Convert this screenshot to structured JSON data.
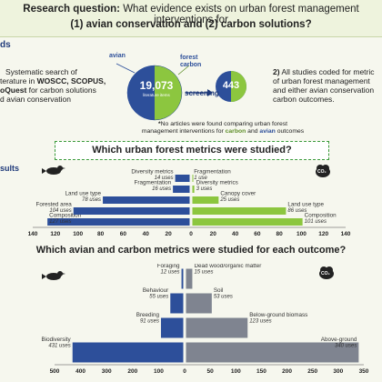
{
  "header": {
    "line1_label": "Research question:",
    "line1_text": "What evidence exists on urban forest management interventions for",
    "line2": "(1) avian conservation and (2) carbon solutions?"
  },
  "methods": {
    "heading": "ds",
    "text_lines": [
      "Systematic search of",
      "terature in ",
      "WOSCC, SCOPUS,",
      "oQuest",
      " for carbon solutions",
      "d avian conservation"
    ],
    "line1": "Systematic search of",
    "line2_pre": "terature in ",
    "line2_bold": "WOSCC, SCOPUS,",
    "line3_bold": "oQuest",
    "line3_post": " for carbon solutions",
    "line4": "d avian conservation"
  },
  "venn": {
    "avian_label": "avian",
    "forest_carbon_label": "forest carbon",
    "big_count": "19,073",
    "big_caption": "literature items",
    "screening_label": "screening",
    "small_count": "443"
  },
  "right_note": {
    "line1_num": "2)",
    "line1": "All studies coded for metric",
    "line2": "of urban forest management",
    "line3": "and either avian conservation",
    "line4": "carbon outcomes."
  },
  "footnote": {
    "line1": "No articles were found comparing urban forest",
    "line2_pre": "management interventions for ",
    "line2_carbon": "carbon",
    "line2_mid": " and ",
    "line2_avian": "avian",
    "line2_post": " outcomes"
  },
  "section1_title": "Which urban forest metrics were studied?",
  "section2_title": "Which avian and carbon metrics were studied for each outcome?",
  "results_label": "sults",
  "co2_label": "CO₂",
  "colors": {
    "avian": "#2d4f9a",
    "carbon": "#8cc63f",
    "carbon_dark": "#5f8f2a",
    "outcome_gray": "#7f8490",
    "navy": "#1f3a7a"
  },
  "chart_data": [
    {
      "type": "bar",
      "title": "Which urban forest metrics were studied?",
      "orientation": "horizontal-diverging",
      "xlim_left": [
        140,
        0
      ],
      "xlim_right": [
        0,
        140
      ],
      "left_ticks": [
        "140",
        "120",
        "100",
        "80",
        "60",
        "40",
        "20",
        "0"
      ],
      "right_ticks": [
        "20",
        "40",
        "60",
        "80",
        "100",
        "120",
        "140"
      ],
      "categories": [
        "Composition",
        "Forested area",
        "Land use type",
        "Fragmentation",
        "Diversity metrics"
      ],
      "series": [
        {
          "name": "avian",
          "values": [
            127,
            104,
            78,
            16,
            14
          ],
          "labels": [
            "Composition",
            "Forested area",
            "Land use type",
            "Fragmentation",
            "Diversity metrics"
          ],
          "uses": [
            "127 uses",
            "104 uses",
            "78 uses",
            "16 uses",
            "14 uses"
          ]
        },
        {
          "name": "carbon",
          "values": [
            101,
            86,
            25,
            3,
            1
          ],
          "labels": [
            "Composition",
            "Land use type",
            "Canopy cover",
            "Diversity metrics",
            "Fragmentation"
          ],
          "uses": [
            "101 uses",
            "86 uses",
            "25 uses",
            "3 uses",
            "1 use"
          ]
        }
      ]
    },
    {
      "type": "bar",
      "title": "Which avian and carbon metrics were studied for each outcome?",
      "orientation": "horizontal-diverging",
      "xlim_left": [
        500,
        0
      ],
      "xlim_right": [
        0,
        350
      ],
      "left_ticks": [
        "500",
        "400",
        "300",
        "200",
        "100",
        "0"
      ],
      "right_ticks": [
        "50",
        "100",
        "150",
        "200",
        "250",
        "300",
        "350"
      ],
      "categories": [
        "Biodiversity",
        "Breeding",
        "Behaviour",
        "Foraging"
      ],
      "series": [
        {
          "name": "avian",
          "values": [
            431,
            91,
            55,
            12
          ],
          "labels": [
            "Biodiversity",
            "Breeding",
            "Behaviour",
            "Foraging"
          ],
          "uses": [
            "431 uses",
            "91 uses",
            "55 uses",
            "12 uses"
          ]
        },
        {
          "name": "carbon",
          "values": [
            340,
            123,
            53,
            15
          ],
          "labels": [
            "Above-ground",
            "Below-ground biomass",
            "Soil",
            "Dead wood/organic matter"
          ],
          "uses": [
            "340 uses",
            "123 uses",
            "53 uses",
            "15 uses"
          ]
        }
      ]
    }
  ]
}
